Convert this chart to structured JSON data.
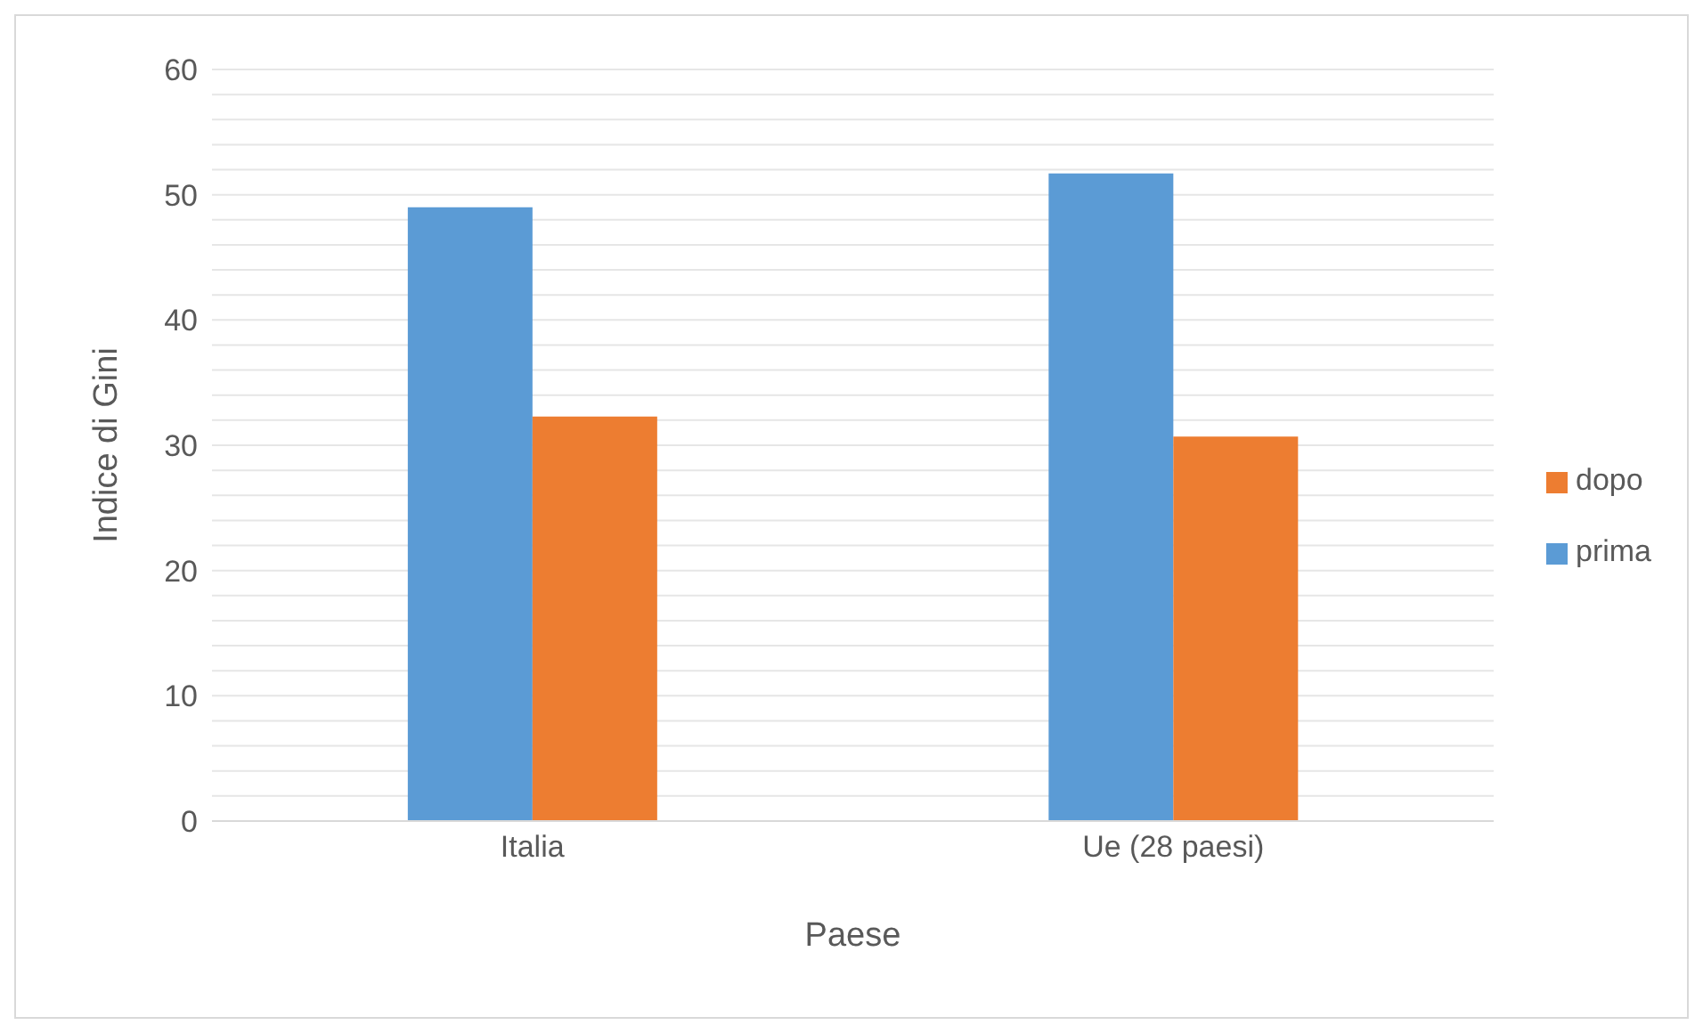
{
  "chart_data": {
    "type": "bar",
    "xlabel": "Paese",
    "ylabel": "Indice di Gini",
    "categories": [
      "Italia",
      "Ue (28 paesi)"
    ],
    "series": [
      {
        "name": "prima",
        "color": "#5b9bd5",
        "values": [
          49.0,
          51.7
        ]
      },
      {
        "name": "dopo",
        "color": "#ed7d31",
        "values": [
          32.3,
          30.7
        ]
      }
    ],
    "ylim": [
      0,
      60
    ],
    "yticks": [
      0,
      {
        "value": 2,
        "label": null
      },
      {
        "value": 4,
        "label": null
      },
      {
        "value": 6,
        "label": null
      },
      {
        "value": 8,
        "label": null
      },
      10,
      {
        "value": 12,
        "label": null
      },
      {
        "value": 14,
        "label": null
      },
      {
        "value": 16,
        "label": null
      },
      {
        "value": 18,
        "label": null
      },
      20,
      {
        "value": 22,
        "label": null
      },
      {
        "value": 24,
        "label": null
      },
      {
        "value": 26,
        "label": null
      },
      {
        "value": 28,
        "label": null
      },
      30,
      {
        "value": 32,
        "label": null
      },
      {
        "value": 34,
        "label": null
      },
      {
        "value": 36,
        "label": null
      },
      {
        "value": 38,
        "label": null
      },
      40,
      {
        "value": 42,
        "label": null
      },
      {
        "value": 44,
        "label": null
      },
      {
        "value": 46,
        "label": null
      },
      {
        "value": 48,
        "label": null
      },
      50,
      {
        "value": 52,
        "label": null
      },
      {
        "value": 54,
        "label": null
      },
      {
        "value": 56,
        "label": null
      },
      {
        "value": 58,
        "label": null
      },
      60
    ],
    "grid": "y",
    "legend": "right"
  }
}
